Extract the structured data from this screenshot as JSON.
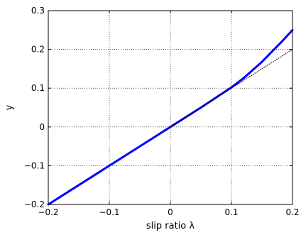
{
  "chart_data": {
    "type": "line",
    "title": "",
    "xlabel": "slip ratio λ",
    "ylabel": "y",
    "xlim": [
      -0.2,
      0.2
    ],
    "ylim": [
      -0.2,
      0.3
    ],
    "grid": true,
    "xticks": [
      -0.2,
      -0.1,
      0,
      0.1,
      0.2
    ],
    "xtick_labels": [
      "−0.2",
      "−0.1",
      "0",
      "0.1",
      "0.2"
    ],
    "yticks": [
      -0.2,
      -0.1,
      0,
      0.1,
      0.2,
      0.3
    ],
    "ytick_labels": [
      "−0.2",
      "−0.1",
      "0",
      "0.1",
      "0.2",
      "0.3"
    ],
    "series": [
      {
        "style": "solid",
        "color": "#0000ff",
        "x": [
          -0.2,
          -0.15,
          -0.1,
          -0.05,
          0,
          0.05,
          0.1,
          0.12,
          0.15,
          0.18,
          0.2
        ],
        "y": [
          -0.2,
          -0.15,
          -0.1,
          -0.05,
          0,
          0.05,
          0.102,
          0.126,
          0.168,
          0.216,
          0.25
        ]
      },
      {
        "style": "dotted",
        "color": "#000000",
        "x": [
          0,
          0.05,
          0.1,
          0.15,
          0.2
        ],
        "y": [
          0,
          0.05,
          0.1,
          0.15,
          0.2
        ]
      }
    ]
  }
}
